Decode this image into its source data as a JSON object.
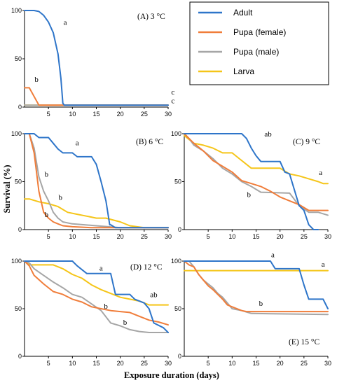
{
  "colors": {
    "adult": "#2e75c9",
    "pupa_female": "#f07d3a",
    "pupa_male": "#a6a6a6",
    "larva": "#f5c518",
    "axis": "#000000"
  },
  "xlabel": "Exposure duration (days)",
  "ylabel": "Survival (%)",
  "legend": [
    {
      "key": "adult",
      "label": "Adult"
    },
    {
      "key": "pupa_female",
      "label": "Pupa (female)"
    },
    {
      "key": "pupa_male",
      "label": "Pupa (male)"
    },
    {
      "key": "larva",
      "label": "Larva"
    }
  ],
  "chart_data": [
    {
      "type": "line",
      "id": "A",
      "title": "(A) 3 °C",
      "xlim": [
        0,
        30
      ],
      "ylim": [
        0,
        100
      ],
      "xticks": [
        5,
        10,
        15,
        20,
        25,
        30
      ],
      "yticks": [
        0,
        50,
        100
      ],
      "series": [
        {
          "key": "adult",
          "x": [
            0,
            2,
            3,
            4,
            5,
            6,
            7,
            7.6,
            8,
            8.3,
            9,
            30
          ],
          "y": [
            100,
            100,
            99,
            95,
            88,
            77,
            55,
            30,
            4,
            2,
            2,
            2
          ]
        },
        {
          "key": "pupa_female",
          "x": [
            0,
            1,
            3,
            30
          ],
          "y": [
            20,
            20,
            2,
            2
          ]
        },
        {
          "key": "pupa_male",
          "x": [
            0,
            1,
            30
          ],
          "y": [
            2,
            2,
            2
          ]
        },
        {
          "key": "larva",
          "x": [
            0,
            30
          ],
          "y": [
            2,
            2
          ]
        }
      ],
      "annotations": [
        {
          "text": "a",
          "x": 8.5,
          "y": 85
        },
        {
          "text": "b",
          "x": 2.5,
          "y": 26
        },
        {
          "text": "c",
          "x": 31,
          "y": 13
        },
        {
          "text": "c",
          "x": 31,
          "y": 4
        }
      ]
    },
    {
      "type": "line",
      "id": "B",
      "title": "(B) 6 °C",
      "xlim": [
        0,
        30
      ],
      "ylim": [
        0,
        100
      ],
      "xticks": [
        5,
        10,
        15,
        20,
        25,
        30
      ],
      "yticks": [
        0,
        50,
        100
      ],
      "series": [
        {
          "key": "adult",
          "x": [
            0,
            2,
            3,
            5,
            6,
            7,
            8,
            10,
            11,
            14,
            15,
            16,
            17,
            17.8,
            18,
            19,
            20,
            30
          ],
          "y": [
            100,
            100,
            96,
            96,
            90,
            84,
            80,
            80,
            76,
            76,
            68,
            50,
            30,
            5,
            5,
            2,
            2,
            2
          ]
        },
        {
          "key": "pupa_female",
          "x": [
            0,
            1,
            2,
            3,
            4,
            5,
            6,
            7,
            8,
            10,
            14,
            30
          ],
          "y": [
            100,
            100,
            80,
            40,
            18,
            12,
            8,
            6,
            4,
            3,
            2,
            2
          ]
        },
        {
          "key": "pupa_male",
          "x": [
            0,
            1,
            2,
            3,
            4,
            5,
            6,
            7,
            8,
            10,
            15,
            20,
            30
          ],
          "y": [
            100,
            100,
            85,
            55,
            40,
            30,
            18,
            12,
            8,
            6,
            4,
            2,
            2
          ]
        },
        {
          "key": "larva",
          "x": [
            0,
            1,
            3,
            5,
            7,
            9,
            11,
            13,
            15,
            17,
            20,
            22,
            25,
            30
          ],
          "y": [
            32,
            32,
            29,
            27,
            24,
            18,
            16,
            14,
            12,
            12,
            8,
            4,
            2,
            2
          ]
        }
      ],
      "annotations": [
        {
          "text": "a",
          "x": 11,
          "y": 88
        },
        {
          "text": "b",
          "x": 4.6,
          "y": 55
        },
        {
          "text": "b",
          "x": 7.5,
          "y": 31
        },
        {
          "text": "b",
          "x": 4.6,
          "y": 13
        }
      ]
    },
    {
      "type": "line",
      "id": "C",
      "title": "(C) 9 °C",
      "xlim": [
        0,
        30
      ],
      "ylim": [
        0,
        100
      ],
      "xticks": [
        5,
        10,
        15,
        20,
        25,
        30
      ],
      "yticks": [
        0,
        50,
        100
      ],
      "series": [
        {
          "key": "adult",
          "x": [
            0,
            12,
            13,
            14,
            15,
            16,
            20,
            21,
            22,
            24,
            25,
            26,
            27,
            28
          ],
          "y": [
            100,
            100,
            95,
            85,
            77,
            71,
            71,
            60,
            58,
            25,
            20,
            5,
            0,
            0
          ]
        },
        {
          "key": "pupa_female",
          "x": [
            0,
            1,
            2,
            4,
            6,
            8,
            10,
            12,
            14,
            16,
            18,
            20,
            22,
            24,
            26,
            30
          ],
          "y": [
            100,
            95,
            90,
            82,
            72,
            66,
            60,
            51,
            48,
            45,
            40,
            34,
            30,
            26,
            20,
            20
          ]
        },
        {
          "key": "pupa_male",
          "x": [
            0,
            1,
            2,
            4,
            6,
            8,
            10,
            12,
            14,
            16,
            22,
            24,
            26,
            28,
            30
          ],
          "y": [
            100,
            95,
            88,
            82,
            74,
            64,
            58,
            50,
            45,
            39,
            38,
            25,
            18,
            18,
            15
          ]
        },
        {
          "key": "larva",
          "x": [
            0,
            1,
            2,
            4,
            6,
            8,
            10,
            12,
            14,
            16,
            18,
            20,
            22,
            24,
            26,
            28,
            29,
            30
          ],
          "y": [
            98,
            94,
            90,
            88,
            85,
            80,
            80,
            72,
            64,
            64,
            64,
            64,
            58,
            56,
            53,
            50,
            48,
            48
          ]
        }
      ],
      "annotations": [
        {
          "text": "ab",
          "x": 17.5,
          "y": 97
        },
        {
          "text": "a",
          "x": 28.5,
          "y": 57
        },
        {
          "text": "b",
          "x": 13.5,
          "y": 34
        }
      ]
    },
    {
      "type": "line",
      "id": "D",
      "title": "(D) 12 °C",
      "xlim": [
        0,
        30
      ],
      "ylim": [
        0,
        100
      ],
      "xticks": [
        5,
        10,
        15,
        20,
        25,
        30
      ],
      "yticks": [
        0,
        50,
        100
      ],
      "series": [
        {
          "key": "adult",
          "x": [
            0,
            1,
            10,
            11,
            13,
            18,
            19,
            22,
            23,
            25,
            26,
            27,
            29,
            30
          ],
          "y": [
            100,
            100,
            100,
            95,
            87,
            87,
            65,
            65,
            60,
            56,
            50,
            35,
            30,
            25
          ]
        },
        {
          "key": "pupa_female",
          "x": [
            0,
            1,
            2,
            4,
            6,
            8,
            10,
            12,
            14,
            16,
            18,
            20,
            22,
            24,
            26,
            28,
            30
          ],
          "y": [
            100,
            95,
            85,
            76,
            68,
            65,
            60,
            57,
            52,
            50,
            48,
            47,
            46,
            42,
            38,
            36,
            33
          ]
        },
        {
          "key": "pupa_male",
          "x": [
            0,
            1,
            2,
            4,
            6,
            8,
            10,
            12,
            14,
            16,
            18,
            20,
            22,
            24,
            26,
            28,
            30
          ],
          "y": [
            100,
            98,
            92,
            85,
            78,
            72,
            65,
            62,
            55,
            48,
            35,
            32,
            28,
            26,
            25,
            25,
            25
          ]
        },
        {
          "key": "larva",
          "x": [
            0,
            1,
            2,
            4,
            6,
            8,
            10,
            12,
            14,
            16,
            18,
            20,
            22,
            24,
            26,
            28,
            30
          ],
          "y": [
            100,
            96,
            96,
            96,
            96,
            92,
            86,
            82,
            75,
            70,
            66,
            62,
            60,
            58,
            54,
            54,
            54
          ]
        }
      ],
      "annotations": [
        {
          "text": "a",
          "x": 16,
          "y": 90
        },
        {
          "text": "ab",
          "x": 27,
          "y": 62
        },
        {
          "text": "b",
          "x": 17,
          "y": 50
        },
        {
          "text": "b",
          "x": 21,
          "y": 33
        }
      ]
    },
    {
      "type": "line",
      "id": "E",
      "title": "(E) 15 °C",
      "xlim": [
        0,
        30
      ],
      "ylim": [
        0,
        100
      ],
      "xticks": [
        5,
        10,
        15,
        20,
        25,
        30
      ],
      "yticks": [
        0,
        50,
        100
      ],
      "series": [
        {
          "key": "adult",
          "x": [
            0,
            18,
            19,
            24,
            25,
            26,
            29,
            30
          ],
          "y": [
            100,
            100,
            92,
            92,
            75,
            60,
            60,
            50
          ]
        },
        {
          "key": "pupa_female",
          "x": [
            0,
            1,
            2,
            3,
            4,
            5,
            6,
            7,
            8,
            9,
            10,
            11,
            12,
            13,
            30
          ],
          "y": [
            100,
            96,
            94,
            86,
            80,
            74,
            70,
            65,
            60,
            54,
            52,
            50,
            48,
            47,
            47
          ]
        },
        {
          "key": "pupa_male",
          "x": [
            0,
            1,
            2,
            3,
            4,
            5,
            6,
            7,
            8,
            9,
            10,
            12,
            14,
            30
          ],
          "y": [
            100,
            100,
            94,
            86,
            80,
            76,
            72,
            66,
            62,
            56,
            50,
            48,
            45,
            44
          ]
        },
        {
          "key": "larva",
          "x": [
            0,
            30
          ],
          "y": [
            90,
            90
          ]
        }
      ],
      "annotations": [
        {
          "text": "a",
          "x": 18.5,
          "y": 104
        },
        {
          "text": "a",
          "x": 29,
          "y": 94
        },
        {
          "text": "b",
          "x": 16,
          "y": 53
        }
      ]
    }
  ]
}
